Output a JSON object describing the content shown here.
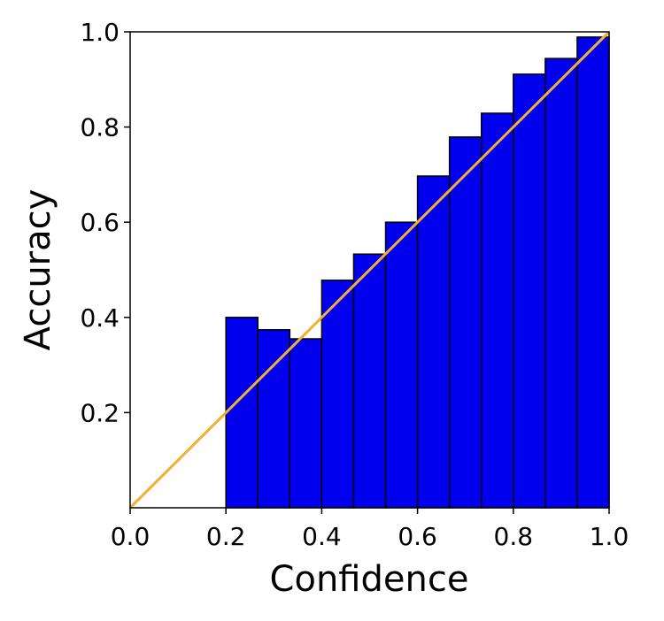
{
  "chart_data": {
    "type": "histogram",
    "xlabel": "Confidence",
    "ylabel": "Accuracy",
    "bins": [
      0.2,
      0.26667,
      0.33333,
      0.4,
      0.46667,
      0.53333,
      0.6,
      0.66667,
      0.73333,
      0.8,
      0.86667,
      0.93333,
      1.0
    ],
    "values": [
      0.4,
      0.374,
      0.355,
      0.478,
      0.533,
      0.6,
      0.697,
      0.779,
      0.829,
      0.911,
      0.944,
      0.989
    ],
    "color": "#0000ee",
    "edgecolor": "#000000",
    "reference_line": {
      "x": [
        0,
        1
      ],
      "y": [
        0,
        1
      ],
      "color": "#f0b030"
    },
    "xlim": [
      0,
      1
    ],
    "ylim": [
      0,
      1
    ],
    "xticks": [
      {
        "value": 0,
        "label": "0.0"
      },
      0.2,
      0.4,
      0.6,
      0.8,
      {
        "value": 1,
        "label": "1.0"
      }
    ],
    "yticks": [
      0.2,
      0.4,
      0.6,
      0.8,
      {
        "value": 1,
        "label": "1.0"
      }
    ]
  }
}
